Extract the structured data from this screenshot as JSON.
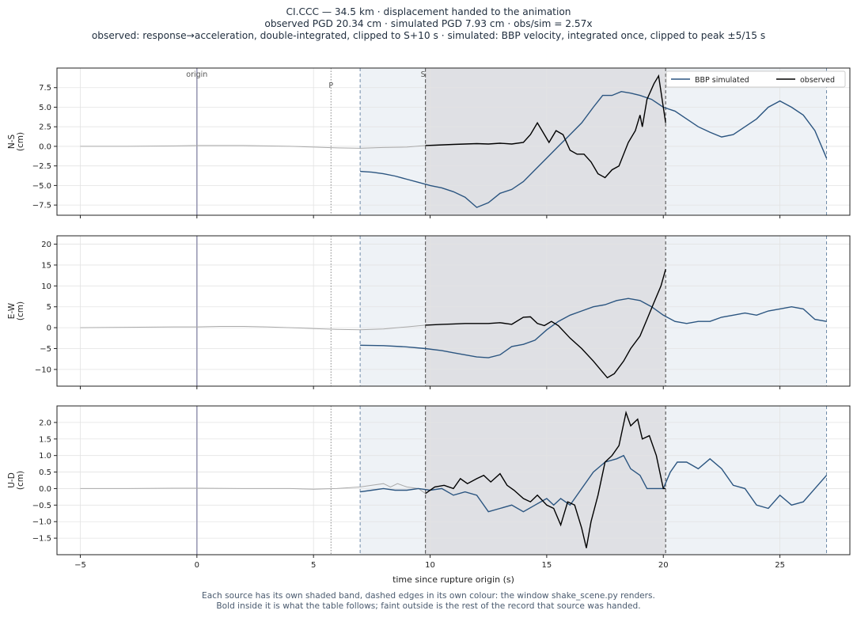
{
  "header": {
    "line1": "CI.CCC  —  34.5 km   ·   displacement handed to the animation",
    "line2": "observed PGD 20.34 cm   ·   simulated PGD 7.93 cm   ·   obs/sim = 2.57x",
    "line3": "observed: response→acceleration, double-integrated, clipped to S+10 s   ·   simulated: BBP velocity, integrated once, clipped to peak ±5/15 s"
  },
  "footer": {
    "line1": "Each source has its own shaded band, dashed edges in its own colour: the window shake_scene.py renders.",
    "line2": "Bold inside it is what the table follows;   faint outside is the rest of the record that source was handed."
  },
  "chart_data": {
    "type": "line",
    "xlabel": "time since rupture origin (s)",
    "xlim": [
      -6,
      28
    ],
    "xticks": [
      -5,
      0,
      5,
      10,
      15,
      20,
      25
    ],
    "markers": [
      {
        "label": "origin",
        "x": 0
      },
      {
        "label": "P",
        "x": 5.75
      },
      {
        "label": "S",
        "x": 9.8
      }
    ],
    "windows": {
      "simulated": [
        7.0,
        27.0
      ],
      "observed": [
        9.8,
        20.1
      ]
    },
    "colors": {
      "simulated": "#2b5580",
      "observed": "#000000",
      "faint": "#aaaaaa",
      "band_simulated": "#eef2f6",
      "band_observed": "#dfe0e4"
    },
    "legend": {
      "position": "top-right",
      "entries": [
        "BBP simulated",
        "observed"
      ]
    },
    "panels": [
      {
        "ylabel": "N-S\n(cm)",
        "ylim": [
          -8.8,
          10.0
        ],
        "yticks": [
          -7.5,
          -5.0,
          -2.5,
          0.0,
          2.5,
          5.0,
          7.5
        ],
        "observed_faint": [
          [
            -5,
            0
          ],
          [
            -3,
            0
          ],
          [
            -1,
            0.05
          ],
          [
            0,
            0.1
          ],
          [
            1,
            0.1
          ],
          [
            2,
            0.1
          ],
          [
            3,
            0.05
          ],
          [
            4,
            0
          ],
          [
            5,
            -0.1
          ],
          [
            6,
            -0.2
          ],
          [
            7,
            -0.25
          ],
          [
            7.5,
            -0.2
          ],
          [
            8,
            -0.15
          ],
          [
            9,
            -0.1
          ],
          [
            9.8,
            0.1
          ]
        ],
        "observed": [
          [
            9.8,
            0.1
          ],
          [
            10.2,
            0.15
          ],
          [
            10.6,
            0.2
          ],
          [
            11,
            0.25
          ],
          [
            11.5,
            0.3
          ],
          [
            12,
            0.35
          ],
          [
            12.5,
            0.3
          ],
          [
            13,
            0.4
          ],
          [
            13.5,
            0.3
          ],
          [
            14,
            0.5
          ],
          [
            14.3,
            1.5
          ],
          [
            14.6,
            3.0
          ],
          [
            14.8,
            2.0
          ],
          [
            15.1,
            0.5
          ],
          [
            15.4,
            2.0
          ],
          [
            15.7,
            1.5
          ],
          [
            16,
            -0.5
          ],
          [
            16.3,
            -1.0
          ],
          [
            16.6,
            -1.0
          ],
          [
            16.9,
            -2.0
          ],
          [
            17.2,
            -3.5
          ],
          [
            17.5,
            -4.0
          ],
          [
            17.8,
            -3.0
          ],
          [
            18.1,
            -2.5
          ],
          [
            18.5,
            0.5
          ],
          [
            18.8,
            2.0
          ],
          [
            19.0,
            4.0
          ],
          [
            19.1,
            2.5
          ],
          [
            19.3,
            6.0
          ],
          [
            19.6,
            8.0
          ],
          [
            19.8,
            9.0
          ],
          [
            20.1,
            3.0
          ]
        ],
        "simulated": [
          [
            7,
            -3.2
          ],
          [
            7.5,
            -3.3
          ],
          [
            8,
            -3.5
          ],
          [
            8.5,
            -3.8
          ],
          [
            9,
            -4.2
          ],
          [
            9.5,
            -4.6
          ],
          [
            10,
            -5.0
          ],
          [
            10.5,
            -5.3
          ],
          [
            11,
            -5.8
          ],
          [
            11.5,
            -6.5
          ],
          [
            12,
            -7.8
          ],
          [
            12.5,
            -7.2
          ],
          [
            13,
            -6.0
          ],
          [
            13.5,
            -5.5
          ],
          [
            14,
            -4.5
          ],
          [
            14.5,
            -3.0
          ],
          [
            15,
            -1.5
          ],
          [
            15.5,
            0.0
          ],
          [
            16,
            1.5
          ],
          [
            16.5,
            3.0
          ],
          [
            17,
            5.0
          ],
          [
            17.4,
            6.5
          ],
          [
            17.8,
            6.5
          ],
          [
            18.2,
            7.0
          ],
          [
            18.6,
            6.8
          ],
          [
            19,
            6.5
          ],
          [
            19.5,
            6.0
          ],
          [
            20,
            5.0
          ],
          [
            20.5,
            4.5
          ],
          [
            21,
            3.5
          ],
          [
            21.5,
            2.5
          ],
          [
            22,
            1.8
          ],
          [
            22.5,
            1.2
          ],
          [
            23,
            1.5
          ],
          [
            23.5,
            2.5
          ],
          [
            24,
            3.5
          ],
          [
            24.5,
            5.0
          ],
          [
            25,
            5.8
          ],
          [
            25.5,
            5.0
          ],
          [
            26,
            4.0
          ],
          [
            26.5,
            2.0
          ],
          [
            27,
            -1.5
          ]
        ]
      },
      {
        "ylabel": "E-W\n(cm)",
        "ylim": [
          -14.0,
          22.0
        ],
        "yticks": [
          -10,
          -5,
          0,
          5,
          10,
          15,
          20
        ],
        "observed_faint": [
          [
            -5,
            0
          ],
          [
            -3,
            0.1
          ],
          [
            -1,
            0.2
          ],
          [
            0,
            0.2
          ],
          [
            1,
            0.3
          ],
          [
            2,
            0.3
          ],
          [
            3,
            0.2
          ],
          [
            4,
            0
          ],
          [
            5,
            -0.2
          ],
          [
            6,
            -0.4
          ],
          [
            7,
            -0.5
          ],
          [
            8,
            -0.3
          ],
          [
            9,
            0.2
          ],
          [
            9.8,
            0.6
          ]
        ],
        "observed": [
          [
            9.8,
            0.6
          ],
          [
            10.5,
            0.8
          ],
          [
            11,
            0.9
          ],
          [
            11.5,
            1.0
          ],
          [
            12,
            1.0
          ],
          [
            12.5,
            1.0
          ],
          [
            13,
            1.2
          ],
          [
            13.5,
            0.8
          ],
          [
            14,
            2.5
          ],
          [
            14.3,
            2.6
          ],
          [
            14.6,
            1.0
          ],
          [
            14.9,
            0.5
          ],
          [
            15.2,
            1.5
          ],
          [
            15.5,
            0.5
          ],
          [
            16,
            -2.5
          ],
          [
            16.5,
            -5.0
          ],
          [
            17,
            -8.0
          ],
          [
            17.3,
            -10.0
          ],
          [
            17.6,
            -12.0
          ],
          [
            17.9,
            -11.0
          ],
          [
            18.3,
            -8.0
          ],
          [
            18.6,
            -5.0
          ],
          [
            19.0,
            -2.0
          ],
          [
            19.3,
            2.0
          ],
          [
            19.6,
            6.0
          ],
          [
            19.9,
            10.0
          ],
          [
            20.1,
            14.0
          ]
        ],
        "simulated": [
          [
            7,
            -4.2
          ],
          [
            8,
            -4.3
          ],
          [
            9,
            -4.6
          ],
          [
            9.8,
            -5.0
          ],
          [
            10.5,
            -5.5
          ],
          [
            11,
            -6.0
          ],
          [
            11.5,
            -6.5
          ],
          [
            12,
            -7.0
          ],
          [
            12.5,
            -7.2
          ],
          [
            13,
            -6.5
          ],
          [
            13.5,
            -4.5
          ],
          [
            14,
            -4.0
          ],
          [
            14.5,
            -3.0
          ],
          [
            15,
            -0.5
          ],
          [
            15.5,
            1.5
          ],
          [
            16,
            3.0
          ],
          [
            16.5,
            4.0
          ],
          [
            17,
            5.0
          ],
          [
            17.5,
            5.5
          ],
          [
            18,
            6.5
          ],
          [
            18.5,
            7.0
          ],
          [
            19,
            6.5
          ],
          [
            19.5,
            5.0
          ],
          [
            20,
            3.0
          ],
          [
            20.5,
            1.5
          ],
          [
            21,
            1.0
          ],
          [
            21.5,
            1.5
          ],
          [
            22,
            1.5
          ],
          [
            22.5,
            2.5
          ],
          [
            23,
            3.0
          ],
          [
            23.5,
            3.5
          ],
          [
            24,
            3.0
          ],
          [
            24.5,
            4.0
          ],
          [
            25,
            4.5
          ],
          [
            25.5,
            5.0
          ],
          [
            26,
            4.5
          ],
          [
            26.5,
            2.0
          ],
          [
            27,
            1.5
          ]
        ]
      },
      {
        "ylabel": "U-D\n(cm)",
        "ylim": [
          -2.0,
          2.5
        ],
        "yticks": [
          -1.5,
          -1.0,
          -0.5,
          0.0,
          0.5,
          1.0,
          1.5,
          2.0
        ],
        "observed_faint": [
          [
            -5,
            0
          ],
          [
            -3,
            0
          ],
          [
            -1,
            0.01
          ],
          [
            0,
            0.01
          ],
          [
            2,
            0
          ],
          [
            4,
            0
          ],
          [
            5,
            -0.02
          ],
          [
            6,
            0
          ],
          [
            7,
            0.05
          ],
          [
            7.5,
            0.1
          ],
          [
            8,
            0.15
          ],
          [
            8.3,
            0.05
          ],
          [
            8.6,
            0.15
          ],
          [
            9,
            0.05
          ],
          [
            9.5,
            0.0
          ],
          [
            9.8,
            -0.15
          ]
        ],
        "observed": [
          [
            9.8,
            -0.15
          ],
          [
            10.2,
            0.05
          ],
          [
            10.6,
            0.1
          ],
          [
            11,
            0.0
          ],
          [
            11.3,
            0.3
          ],
          [
            11.6,
            0.15
          ],
          [
            12,
            0.3
          ],
          [
            12.3,
            0.4
          ],
          [
            12.6,
            0.2
          ],
          [
            13,
            0.45
          ],
          [
            13.3,
            0.1
          ],
          [
            13.6,
            -0.05
          ],
          [
            14,
            -0.3
          ],
          [
            14.3,
            -0.4
          ],
          [
            14.6,
            -0.2
          ],
          [
            15,
            -0.5
          ],
          [
            15.3,
            -0.6
          ],
          [
            15.6,
            -1.1
          ],
          [
            15.9,
            -0.4
          ],
          [
            16.2,
            -0.5
          ],
          [
            16.5,
            -1.2
          ],
          [
            16.7,
            -1.8
          ],
          [
            16.9,
            -1.0
          ],
          [
            17.2,
            -0.2
          ],
          [
            17.5,
            0.8
          ],
          [
            17.8,
            1.0
          ],
          [
            18.1,
            1.3
          ],
          [
            18.4,
            2.3
          ],
          [
            18.6,
            1.9
          ],
          [
            18.9,
            2.1
          ],
          [
            19.1,
            1.5
          ],
          [
            19.4,
            1.6
          ],
          [
            19.7,
            1.0
          ],
          [
            20.0,
            0.0
          ],
          [
            20.1,
            0.0
          ]
        ],
        "simulated": [
          [
            7,
            -0.1
          ],
          [
            7.5,
            -0.05
          ],
          [
            8,
            0.0
          ],
          [
            8.5,
            -0.05
          ],
          [
            9,
            -0.05
          ],
          [
            9.5,
            0.0
          ],
          [
            10,
            -0.05
          ],
          [
            10.5,
            0.0
          ],
          [
            11,
            -0.2
          ],
          [
            11.5,
            -0.1
          ],
          [
            12,
            -0.2
          ],
          [
            12.5,
            -0.7
          ],
          [
            13,
            -0.6
          ],
          [
            13.5,
            -0.5
          ],
          [
            14,
            -0.7
          ],
          [
            14.5,
            -0.5
          ],
          [
            15,
            -0.3
          ],
          [
            15.3,
            -0.5
          ],
          [
            15.6,
            -0.3
          ],
          [
            16,
            -0.5
          ],
          [
            16.5,
            0.0
          ],
          [
            17,
            0.5
          ],
          [
            17.5,
            0.8
          ],
          [
            18,
            0.9
          ],
          [
            18.3,
            1.0
          ],
          [
            18.6,
            0.6
          ],
          [
            19,
            0.4
          ],
          [
            19.3,
            0.0
          ],
          [
            19.6,
            0.0
          ],
          [
            20,
            0.0
          ],
          [
            20.3,
            0.5
          ],
          [
            20.6,
            0.8
          ],
          [
            21,
            0.8
          ],
          [
            21.5,
            0.6
          ],
          [
            22,
            0.9
          ],
          [
            22.5,
            0.6
          ],
          [
            23,
            0.1
          ],
          [
            23.5,
            0.0
          ],
          [
            24,
            -0.5
          ],
          [
            24.5,
            -0.6
          ],
          [
            25,
            -0.2
          ],
          [
            25.5,
            -0.5
          ],
          [
            26,
            -0.4
          ],
          [
            26.5,
            0.0
          ],
          [
            27,
            0.4
          ]
        ]
      }
    ]
  }
}
